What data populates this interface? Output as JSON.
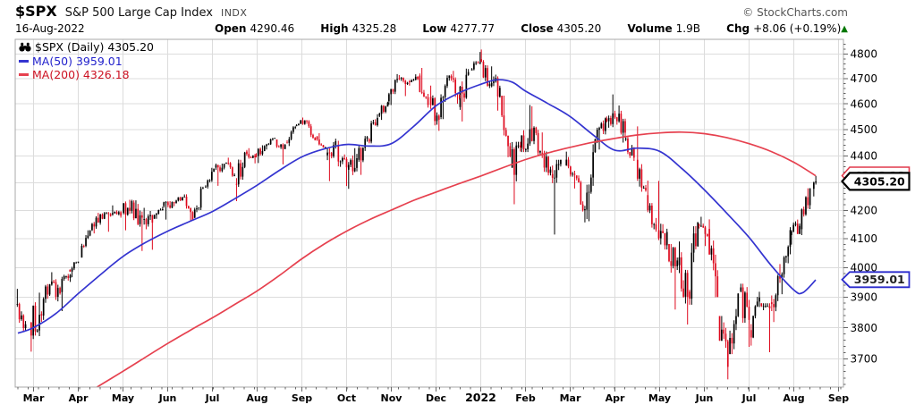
{
  "header": {
    "symbol": "$SPX",
    "name": "S&P 500 Large Cap Index",
    "exchange": "INDX",
    "copyright": "© StockCharts.com",
    "date": "16-Aug-2022",
    "quote": [
      {
        "label": "Open",
        "value": "4290.46"
      },
      {
        "label": "High",
        "value": "4325.28"
      },
      {
        "label": "Low",
        "value": "4277.77"
      },
      {
        "label": "Close",
        "value": "4305.20"
      },
      {
        "label": "Volume",
        "value": "1.9B"
      },
      {
        "label": "Chg",
        "value": "+8.06 (+0.19%)"
      }
    ],
    "change_arrow": "▲",
    "change_direction": "up"
  },
  "legend": {
    "main": "$SPX (Daily) 4305.20",
    "ma50": "MA(50) 3959.01",
    "ma200": "MA(200) 4326.18"
  },
  "price_tags": [
    {
      "name": "ma200-price-tag",
      "value": 4326.18,
      "text": "4326.18",
      "border": "#e0394b",
      "text_color": "#222222",
      "border_width": 1.6,
      "half_height": 9.5
    },
    {
      "name": "close-price-tag",
      "value": 4305.2,
      "text": "4305.20",
      "border": "#000000",
      "text_color": "#000000",
      "border_width": 2.2,
      "half_height": 9.5
    },
    {
      "name": "ma50-price-tag",
      "value": 3959.01,
      "text": "3959.01",
      "border": "#2b2bcc",
      "text_color": "#222222",
      "border_width": 1.8,
      "half_height": 8.5
    }
  ],
  "colors": {
    "up_candle": "#000000",
    "down_candle": "#de0a1e",
    "ma50_line": "#3434d0",
    "ma200_line": "#e6414f",
    "legend_ma50_text": "#2222cc",
    "legend_ma200_text": "#cc1122",
    "grid": "#dcdcdc",
    "frame": "#a8a8a8",
    "tick": "#666666",
    "axis_text": "#000000",
    "change_up": "#007700",
    "muted_text": "#555555"
  },
  "chart_data": {
    "type": "candlestick",
    "title": "$SPX (Daily)",
    "last_close": 4305.2,
    "x_axis": {
      "labels": [
        "Mar",
        "Apr",
        "May",
        "Jun",
        "Jul",
        "Aug",
        "Sep",
        "Oct",
        "Nov",
        "Dec",
        "2022",
        "Feb",
        "Mar",
        "Apr",
        "May",
        "Jun",
        "Jul",
        "Aug",
        "Sep"
      ],
      "bold_label": "2022",
      "start_month": "2021-03",
      "end_month": "2022-09"
    },
    "y_axis": {
      "scale": "log",
      "ylim": [
        3612,
        4860
      ],
      "ticks": [
        3700,
        3800,
        3900,
        4000,
        4100,
        4200,
        4300,
        4400,
        4500,
        4600,
        4700,
        4800
      ],
      "minor_tick_step": 20,
      "grid": true,
      "position": "right"
    },
    "resolution_note": "weekly OHLC estimated from the daily chart pixels",
    "weekly_ohlc": [
      [
        "2021-02-26",
        3877,
        3928,
        3789,
        3811
      ],
      [
        "2021-03-05",
        3816,
        3915,
        3723,
        3842
      ],
      [
        "2021-03-12",
        3844,
        3944,
        3819,
        3943
      ],
      [
        "2021-03-19",
        3942,
        3984,
        3886,
        3913
      ],
      [
        "2021-03-26",
        3917,
        3978,
        3854,
        3975
      ],
      [
        "2021-04-01",
        3992,
        4020,
        3967,
        4020
      ],
      [
        "2021-04-09",
        4034,
        4129,
        4034,
        4129
      ],
      [
        "2021-04-16",
        4130,
        4191,
        4118,
        4185
      ],
      [
        "2021-04-23",
        4185,
        4194,
        4124,
        4180
      ],
      [
        "2021-04-30",
        4185,
        4218,
        4174,
        4181
      ],
      [
        "2021-05-07",
        4191,
        4238,
        4129,
        4233
      ],
      [
        "2021-05-14",
        4228,
        4236,
        4057,
        4174
      ],
      [
        "2021-05-21",
        4166,
        4209,
        4061,
        4156
      ],
      [
        "2021-05-28",
        4170,
        4213,
        4170,
        4204
      ],
      [
        "2021-06-04",
        4216,
        4233,
        4167,
        4230
      ],
      [
        "2021-06-11",
        4229,
        4249,
        4215,
        4247
      ],
      [
        "2021-06-18",
        4248,
        4258,
        4164,
        4166
      ],
      [
        "2021-06-25",
        4173,
        4286,
        4173,
        4281
      ],
      [
        "2021-07-02",
        4284,
        4355,
        4279,
        4352
      ],
      [
        "2021-07-09",
        4356,
        4371,
        4289,
        4370
      ],
      [
        "2021-07-16",
        4372,
        4393,
        4322,
        4327
      ],
      [
        "2021-07-23",
        4296,
        4415,
        4233,
        4412
      ],
      [
        "2021-07-30",
        4416,
        4429,
        4372,
        4395
      ],
      [
        "2021-08-06",
        4402,
        4440,
        4373,
        4437
      ],
      [
        "2021-08-13",
        4437,
        4468,
        4424,
        4468
      ],
      [
        "2021-08-20",
        4462,
        4462,
        4368,
        4442
      ],
      [
        "2021-08-27",
        4450,
        4513,
        4437,
        4509
      ],
      [
        "2021-09-03",
        4513,
        4546,
        4513,
        4535
      ],
      [
        "2021-09-10",
        4535,
        4536,
        4458,
        4459
      ],
      [
        "2021-09-17",
        4474,
        4486,
        4428,
        4433
      ],
      [
        "2021-09-24",
        4402,
        4465,
        4306,
        4455
      ],
      [
        "2021-10-01",
        4442,
        4457,
        4288,
        4357
      ],
      [
        "2021-10-08",
        4348,
        4429,
        4278,
        4391
      ],
      [
        "2021-10-15",
        4385,
        4475,
        4329,
        4471
      ],
      [
        "2021-10-22",
        4463,
        4559,
        4447,
        4545
      ],
      [
        "2021-10-29",
        4553,
        4608,
        4537,
        4605
      ],
      [
        "2021-11-05",
        4610,
        4718,
        4595,
        4698
      ],
      [
        "2021-11-12",
        4701,
        4714,
        4630,
        4683
      ],
      [
        "2021-11-19",
        4689,
        4717,
        4672,
        4698
      ],
      [
        "2021-11-26",
        4712,
        4743,
        4585,
        4595
      ],
      [
        "2021-12-03",
        4628,
        4672,
        4495,
        4538
      ],
      [
        "2021-12-10",
        4548,
        4713,
        4540,
        4712
      ],
      [
        "2021-12-17",
        4710,
        4731,
        4600,
        4621
      ],
      [
        "2021-12-23",
        4587,
        4740,
        4531,
        4726
      ],
      [
        "2021-12-31",
        4733,
        4808,
        4733,
        4766
      ],
      [
        "2022-01-07",
        4778,
        4818,
        4662,
        4677
      ],
      [
        "2022-01-14",
        4669,
        4749,
        4573,
        4663
      ],
      [
        "2022-01-21",
        4632,
        4632,
        4395,
        4398
      ],
      [
        "2022-01-28",
        4356,
        4453,
        4222,
        4432
      ],
      [
        "2022-02-04",
        4431,
        4595,
        4414,
        4501
      ],
      [
        "2022-02-11",
        4505,
        4590,
        4401,
        4419
      ],
      [
        "2022-02-18",
        4412,
        4489,
        4327,
        4349
      ],
      [
        "2022-02-25",
        4332,
        4385,
        4114,
        4385
      ],
      [
        "2022-03-04",
        4364,
        4416,
        4279,
        4329
      ],
      [
        "2022-03-11",
        4327,
        4327,
        4157,
        4204
      ],
      [
        "2022-03-18",
        4202,
        4465,
        4161,
        4463
      ],
      [
        "2022-03-25",
        4462,
        4546,
        4424,
        4543
      ],
      [
        "2022-04-01",
        4541,
        4637,
        4507,
        4546
      ],
      [
        "2022-04-08",
        4547,
        4593,
        4450,
        4488
      ],
      [
        "2022-04-14",
        4462,
        4471,
        4381,
        4393
      ],
      [
        "2022-04-22",
        4385,
        4512,
        4267,
        4272
      ],
      [
        "2022-04-29",
        4255,
        4308,
        4124,
        4132
      ],
      [
        "2022-05-06",
        4130,
        4307,
        4062,
        4123
      ],
      [
        "2022-05-13",
        4081,
        4081,
        3859,
        4024
      ],
      [
        "2022-05-20",
        4008,
        4090,
        3810,
        3901
      ],
      [
        "2022-05-27",
        3919,
        4158,
        3875,
        4158
      ],
      [
        "2022-06-03",
        4149,
        4177,
        4074,
        4109
      ],
      [
        "2022-06-10",
        4134,
        4168,
        3900,
        3901
      ],
      [
        "2022-06-17",
        3838,
        3838,
        3636,
        3675
      ],
      [
        "2022-06-24",
        3715,
        3913,
        3715,
        3912
      ],
      [
        "2022-07-01",
        3920,
        3945,
        3738,
        3825
      ],
      [
        "2022-07-08",
        3792,
        3918,
        3742,
        3899
      ],
      [
        "2022-07-15",
        3880,
        3880,
        3721,
        3863
      ],
      [
        "2022-07-22",
        3883,
        4012,
        3818,
        3962
      ],
      [
        "2022-07-29",
        3963,
        4140,
        3910,
        4130
      ],
      [
        "2022-08-05",
        4112,
        4167,
        4079,
        4145
      ],
      [
        "2022-08-12",
        4133,
        4280,
        4112,
        4280
      ],
      [
        "2022-08-16",
        4278,
        4325.28,
        4250,
        4305.2,
        2
      ]
    ],
    "ma50": {
      "name": "MA(50)",
      "last_value": 3959.01,
      "anchors_month_value": [
        [
          -0.35,
          3782
        ],
        [
          0,
          3800
        ],
        [
          0.5,
          3846
        ],
        [
          1,
          3912
        ],
        [
          1.5,
          3976
        ],
        [
          2,
          4038
        ],
        [
          2.5,
          4086
        ],
        [
          3,
          4126
        ],
        [
          3.5,
          4161
        ],
        [
          4,
          4196
        ],
        [
          4.5,
          4242
        ],
        [
          5,
          4291
        ],
        [
          5.5,
          4346
        ],
        [
          6,
          4396
        ],
        [
          6.5,
          4426
        ],
        [
          7,
          4443
        ],
        [
          7.5,
          4437
        ],
        [
          8,
          4446
        ],
        [
          8.5,
          4512
        ],
        [
          9,
          4592
        ],
        [
          9.5,
          4642
        ],
        [
          10,
          4677
        ],
        [
          10.35,
          4695
        ],
        [
          10.7,
          4686
        ],
        [
          11,
          4650
        ],
        [
          11.5,
          4601
        ],
        [
          12,
          4550
        ],
        [
          12.5,
          4481
        ],
        [
          13,
          4421
        ],
        [
          13.5,
          4429
        ],
        [
          14,
          4417
        ],
        [
          14.5,
          4352
        ],
        [
          15,
          4274
        ],
        [
          15.5,
          4190
        ],
        [
          16,
          4104
        ],
        [
          16.5,
          4006
        ],
        [
          17,
          3924
        ],
        [
          17.2,
          3915
        ],
        [
          17.49,
          3958
        ]
      ]
    },
    "ma200": {
      "name": "MA(200)",
      "last_value": 4326.18,
      "anchors_month_value": [
        [
          1.42,
          3612
        ],
        [
          2,
          3661
        ],
        [
          2.5,
          3705
        ],
        [
          3,
          3749
        ],
        [
          3.5,
          3791
        ],
        [
          4,
          3832
        ],
        [
          4.5,
          3876
        ],
        [
          5,
          3921
        ],
        [
          5.5,
          3973
        ],
        [
          6,
          4030
        ],
        [
          6.5,
          4081
        ],
        [
          7,
          4126
        ],
        [
          7.5,
          4166
        ],
        [
          8,
          4201
        ],
        [
          8.5,
          4236
        ],
        [
          9,
          4266
        ],
        [
          9.5,
          4296
        ],
        [
          10,
          4325
        ],
        [
          10.5,
          4356
        ],
        [
          11,
          4386
        ],
        [
          11.5,
          4411
        ],
        [
          12,
          4432
        ],
        [
          12.5,
          4451
        ],
        [
          13,
          4466
        ],
        [
          13.5,
          4479
        ],
        [
          14,
          4487
        ],
        [
          14.5,
          4490
        ],
        [
          15,
          4484
        ],
        [
          15.5,
          4469
        ],
        [
          16,
          4446
        ],
        [
          16.5,
          4416
        ],
        [
          17,
          4376
        ],
        [
          17.49,
          4326
        ]
      ]
    }
  }
}
